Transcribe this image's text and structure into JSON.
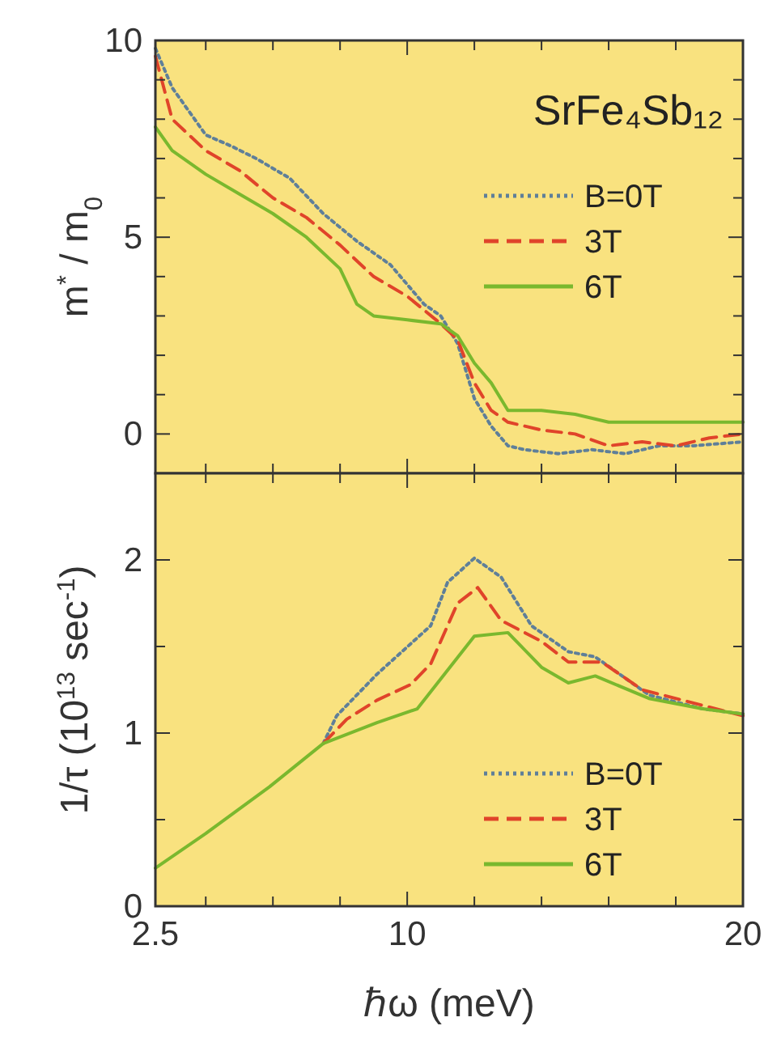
{
  "chart_data": [
    {
      "type": "line",
      "ylabel": "m$^{*}$ / m$_{0}$",
      "annotations": [
        "SrFe₄Sb₁₂"
      ],
      "xlim": [
        2.5,
        20
      ],
      "ylim": [
        -1,
        10
      ],
      "xticks": [
        2.5,
        {
          "value": 4,
          "label": null
        },
        {
          "value": 6,
          "label": null
        },
        {
          "value": 8,
          "label": null
        },
        10,
        {
          "value": 12,
          "label": null
        },
        {
          "value": 14,
          "label": null
        },
        {
          "value": 16,
          "label": null
        },
        {
          "value": 18,
          "label": null
        },
        20
      ],
      "yticks": [
        0,
        {
          "value": 1,
          "label": null
        },
        {
          "value": 2,
          "label": null
        },
        {
          "value": 3,
          "label": null
        },
        {
          "value": 4,
          "label": null
        },
        5,
        {
          "value": 6,
          "label": null
        },
        {
          "value": 7,
          "label": null
        },
        {
          "value": 8,
          "label": null
        },
        {
          "value": 9,
          "label": null
        },
        10
      ],
      "tick_labels": "y",
      "legend": "top right",
      "grid": false,
      "series": [
        {
          "name": "B=0T",
          "color": "#5f7f99",
          "line_style": "dotted",
          "x": [
            2.5,
            3,
            4,
            4.8,
            5.5,
            6.5,
            7.5,
            8.5,
            9.5,
            10.5,
            11,
            11.5,
            12,
            12.5,
            13,
            13.5,
            14.5,
            15.5,
            16.5,
            17.5,
            18.5,
            20
          ],
          "values": [
            9.8,
            8.8,
            7.6,
            7.3,
            7.0,
            6.5,
            5.6,
            4.9,
            4.3,
            3.3,
            3.0,
            2.3,
            0.9,
            0.2,
            -0.3,
            -0.4,
            -0.5,
            -0.4,
            -0.5,
            -0.3,
            -0.3,
            -0.2
          ]
        },
        {
          "name": "3T",
          "color": "#e0442a",
          "line_style": "dashed",
          "x": [
            2.5,
            3,
            4,
            5,
            6,
            7,
            8,
            9,
            10,
            11,
            11.5,
            12,
            12.5,
            13,
            14,
            15,
            16,
            17,
            18,
            19,
            20
          ],
          "values": [
            9.6,
            8.0,
            7.2,
            6.7,
            6.0,
            5.5,
            4.8,
            4.0,
            3.5,
            2.8,
            2.4,
            1.3,
            0.6,
            0.3,
            0.1,
            0.0,
            -0.3,
            -0.2,
            -0.3,
            -0.1,
            0.0
          ]
        },
        {
          "name": "6T",
          "color": "#7ab82e",
          "line_style": "solid",
          "x": [
            2.5,
            3,
            4,
            5,
            6,
            7,
            8,
            8.5,
            9,
            10,
            11,
            11.5,
            12,
            12.5,
            13,
            14,
            15,
            16,
            17,
            18,
            19,
            20
          ],
          "values": [
            7.8,
            7.2,
            6.6,
            6.1,
            5.6,
            5.0,
            4.2,
            3.3,
            3.0,
            2.9,
            2.8,
            2.5,
            1.8,
            1.3,
            0.6,
            0.6,
            0.5,
            0.3,
            0.3,
            0.3,
            0.3,
            0.3
          ]
        }
      ]
    },
    {
      "type": "line",
      "xlabel": "ℏω (meV)",
      "ylabel": "1/τ (10$^{13}$ sec$^{-1}$)",
      "xlim": [
        2.5,
        20
      ],
      "ylim": [
        0,
        2.5
      ],
      "xticks": [
        2.5,
        {
          "value": 4,
          "label": null
        },
        {
          "value": 6,
          "label": null
        },
        {
          "value": 8,
          "label": null
        },
        10,
        {
          "value": 12,
          "label": null
        },
        {
          "value": 14,
          "label": null
        },
        {
          "value": 16,
          "label": null
        },
        {
          "value": 18,
          "label": null
        },
        20
      ],
      "yticks": [
        0,
        {
          "value": 0.5,
          "label": null
        },
        1,
        {
          "value": 1.5,
          "label": null
        },
        2
      ],
      "legend": "bottom right",
      "grid": false,
      "series": [
        {
          "name": "B=0T",
          "color": "#5f7f99",
          "line_style": "dotted",
          "x": [
            7.5,
            7.9,
            9.1,
            10.7,
            11.2,
            12,
            12.8,
            13.7,
            14.8,
            15.6,
            17.2,
            18.8,
            20
          ],
          "values": [
            0.94,
            1.1,
            1.34,
            1.62,
            1.87,
            2.01,
            1.9,
            1.62,
            1.47,
            1.44,
            1.22,
            1.14,
            1.11
          ]
        },
        {
          "name": "3T",
          "color": "#e0442a",
          "line_style": "dashed",
          "x": [
            7.5,
            8.2,
            9.1,
            10.1,
            10.7,
            11.5,
            12.1,
            12.8,
            14,
            14.8,
            15.8,
            17,
            19,
            20
          ],
          "values": [
            0.94,
            1.08,
            1.19,
            1.28,
            1.4,
            1.75,
            1.84,
            1.65,
            1.53,
            1.41,
            1.41,
            1.25,
            1.15,
            1.1
          ]
        },
        {
          "name": "6T",
          "color": "#7ab82e",
          "line_style": "solid",
          "x": [
            2.5,
            4,
            5.9,
            7.5,
            9.1,
            10.3,
            12,
            13,
            14,
            14.8,
            15.6,
            17.2,
            18.8,
            20
          ],
          "values": [
            0.22,
            0.42,
            0.69,
            0.94,
            1.06,
            1.14,
            1.56,
            1.58,
            1.38,
            1.29,
            1.33,
            1.2,
            1.14,
            1.11
          ]
        }
      ]
    }
  ]
}
